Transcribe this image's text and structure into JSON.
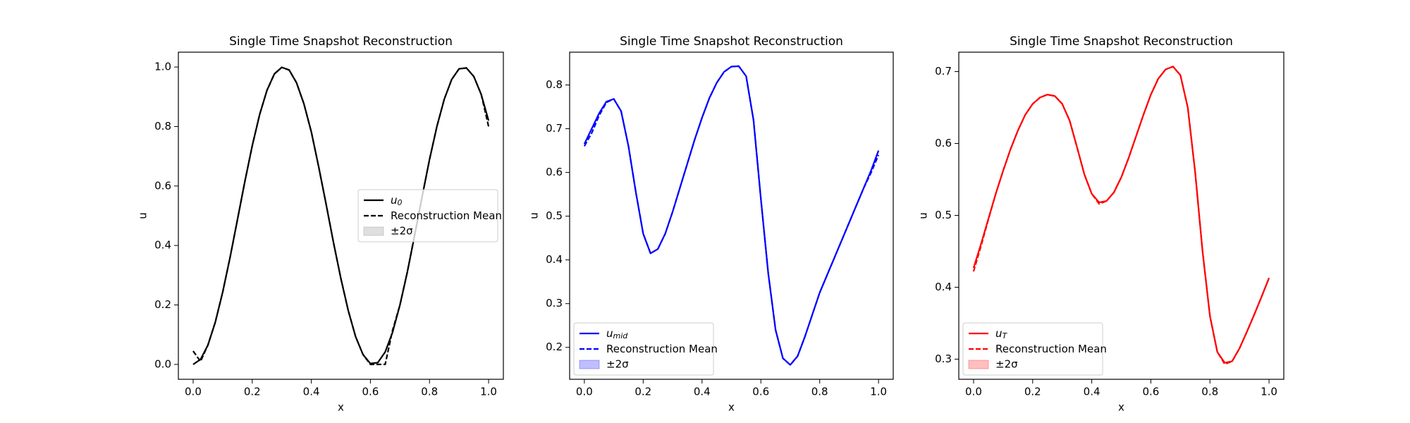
{
  "chart_data": [
    {
      "type": "line",
      "title": "Single Time Snapshot Reconstruction",
      "xlabel": "x",
      "ylabel": "u",
      "x": [
        0,
        0.025,
        0.05,
        0.075,
        0.1,
        0.125,
        0.15,
        0.175,
        0.2,
        0.225,
        0.25,
        0.275,
        0.3,
        0.325,
        0.35,
        0.375,
        0.4,
        0.425,
        0.45,
        0.475,
        0.5,
        0.525,
        0.55,
        0.575,
        0.6,
        0.625,
        0.65,
        0.675,
        0.7,
        0.725,
        0.75,
        0.775,
        0.8,
        0.825,
        0.85,
        0.875,
        0.9,
        0.925,
        0.95,
        0.975,
        1
      ],
      "series": [
        {
          "name": "u",
          "subscript": "0",
          "color": "#000000",
          "style": "solid",
          "values": [
            0,
            0.017,
            0.065,
            0.142,
            0.243,
            0.36,
            0.487,
            0.615,
            0.735,
            0.84,
            0.922,
            0.977,
            0.999,
            0.99,
            0.947,
            0.876,
            0.782,
            0.664,
            0.539,
            0.41,
            0.289,
            0.181,
            0.093,
            0.033,
            0.003,
            0.006,
            0.042,
            0.108,
            0.2,
            0.311,
            0.436,
            0.564,
            0.689,
            0.8,
            0.892,
            0.958,
            0.994,
            0.997,
            0.968,
            0.908,
            0.82
          ]
        },
        {
          "name": "Reconstruction Mean",
          "color": "#000000",
          "style": "dashed",
          "values": [
            0.045,
            0.01,
            0.065,
            0.142,
            0.243,
            0.36,
            0.487,
            0.615,
            0.735,
            0.84,
            0.922,
            0.977,
            0.999,
            0.99,
            0.947,
            0.876,
            0.782,
            0.664,
            0.539,
            0.41,
            0.289,
            0.181,
            0.093,
            0.033,
            0,
            0,
            0,
            0.115,
            0.2,
            0.311,
            0.436,
            0.564,
            0.689,
            0.8,
            0.892,
            0.958,
            0.994,
            0.997,
            0.968,
            0.908,
            0.8
          ]
        }
      ],
      "band": {
        "name": "±2σ",
        "color": "#808080"
      },
      "legend": "center right",
      "xlim": [
        -0.05,
        1.05
      ],
      "xticks": [
        {
          "value": 0,
          "label": "0.0"
        },
        0.2,
        0.4,
        0.6,
        0.8,
        {
          "value": 1,
          "label": "1.0"
        }
      ],
      "ylim": [
        -0.05,
        1.05
      ],
      "yticks": [
        {
          "value": 0,
          "label": "0.0"
        },
        0.2,
        0.4,
        0.6,
        0.8,
        {
          "value": 1,
          "label": "1.0"
        }
      ]
    },
    {
      "type": "line",
      "title": "Single Time Snapshot Reconstruction",
      "xlabel": "x",
      "ylabel": "u",
      "x": [
        0,
        0.025,
        0.05,
        0.075,
        0.1,
        0.125,
        0.15,
        0.175,
        0.2,
        0.225,
        0.25,
        0.275,
        0.3,
        0.325,
        0.35,
        0.375,
        0.4,
        0.425,
        0.45,
        0.475,
        0.5,
        0.525,
        0.55,
        0.575,
        0.6,
        0.625,
        0.65,
        0.675,
        0.7,
        0.725,
        0.75,
        0.775,
        0.8,
        0.825,
        0.85,
        0.875,
        0.9,
        0.925,
        0.95,
        0.975,
        1
      ],
      "series": [
        {
          "name": "u",
          "subscript": "mid",
          "color": "#0000ff",
          "style": "solid",
          "values": [
            0.665,
            0.7,
            0.735,
            0.762,
            0.768,
            0.74,
            0.66,
            0.555,
            0.46,
            0.415,
            0.425,
            0.46,
            0.51,
            0.565,
            0.62,
            0.675,
            0.725,
            0.77,
            0.805,
            0.83,
            0.842,
            0.843,
            0.82,
            0.72,
            0.54,
            0.37,
            0.24,
            0.175,
            0.16,
            0.18,
            0.225,
            0.275,
            0.325,
            0.365,
            0.405,
            0.445,
            0.485,
            0.525,
            0.565,
            0.605,
            0.65
          ]
        },
        {
          "name": "Reconstruction Mean",
          "color": "#0000ff",
          "style": "dashed",
          "values": [
            0.66,
            0.69,
            0.73,
            0.76,
            0.768,
            0.74,
            0.66,
            0.555,
            0.46,
            0.415,
            0.425,
            0.46,
            0.51,
            0.565,
            0.62,
            0.675,
            0.725,
            0.77,
            0.805,
            0.83,
            0.842,
            0.843,
            0.82,
            0.72,
            0.54,
            0.37,
            0.24,
            0.175,
            0.16,
            0.18,
            0.225,
            0.275,
            0.325,
            0.365,
            0.405,
            0.445,
            0.485,
            0.525,
            0.565,
            0.6,
            0.64
          ]
        }
      ],
      "band": {
        "name": "±2σ",
        "color": "#0000ff"
      },
      "legend": "lower left",
      "xlim": [
        -0.05,
        1.05
      ],
      "xticks": [
        {
          "value": 0,
          "label": "0.0"
        },
        0.2,
        0.4,
        0.6,
        0.8,
        {
          "value": 1,
          "label": "1.0"
        }
      ],
      "ylim": [
        0.127,
        0.875
      ],
      "yticks": [
        0.2,
        0.3,
        0.4,
        0.5,
        0.6,
        0.7,
        0.8
      ]
    },
    {
      "type": "line",
      "title": "Single Time Snapshot Reconstruction",
      "xlabel": "x",
      "ylabel": "u",
      "x": [
        0,
        0.025,
        0.05,
        0.075,
        0.1,
        0.125,
        0.15,
        0.175,
        0.2,
        0.225,
        0.25,
        0.275,
        0.3,
        0.325,
        0.35,
        0.375,
        0.4,
        0.425,
        0.45,
        0.475,
        0.5,
        0.525,
        0.55,
        0.575,
        0.6,
        0.625,
        0.65,
        0.675,
        0.7,
        0.725,
        0.75,
        0.775,
        0.8,
        0.825,
        0.85,
        0.875,
        0.9,
        0.925,
        0.95,
        0.975,
        1
      ],
      "series": [
        {
          "name": "u",
          "subscript": "T",
          "color": "#ff0000",
          "style": "solid",
          "values": [
            0.427,
            0.46,
            0.495,
            0.53,
            0.562,
            0.592,
            0.618,
            0.64,
            0.655,
            0.664,
            0.668,
            0.666,
            0.655,
            0.632,
            0.595,
            0.557,
            0.53,
            0.518,
            0.52,
            0.532,
            0.553,
            0.58,
            0.61,
            0.64,
            0.668,
            0.69,
            0.703,
            0.707,
            0.695,
            0.65,
            0.56,
            0.45,
            0.36,
            0.31,
            0.295,
            0.297,
            0.315,
            0.338,
            0.362,
            0.387,
            0.413
          ]
        },
        {
          "name": "Reconstruction Mean",
          "color": "#ff0000",
          "style": "dashed",
          "values": [
            0.422,
            0.457,
            0.494,
            0.53,
            0.562,
            0.592,
            0.618,
            0.64,
            0.655,
            0.664,
            0.668,
            0.666,
            0.655,
            0.632,
            0.595,
            0.557,
            0.53,
            0.516,
            0.52,
            0.532,
            0.553,
            0.58,
            0.61,
            0.64,
            0.668,
            0.69,
            0.703,
            0.707,
            0.695,
            0.65,
            0.56,
            0.45,
            0.36,
            0.31,
            0.293,
            0.297,
            0.315,
            0.338,
            0.362,
            0.387,
            0.413
          ]
        }
      ],
      "band": {
        "name": "±2σ",
        "color": "#ff0000"
      },
      "legend": "lower left",
      "xlim": [
        -0.05,
        1.05
      ],
      "xticks": [
        {
          "value": 0,
          "label": "0.0"
        },
        0.2,
        0.4,
        0.6,
        0.8,
        {
          "value": 1,
          "label": "1.0"
        }
      ],
      "ylim": [
        0.272,
        0.727
      ],
      "yticks": [
        0.3,
        0.4,
        0.5,
        0.6,
        0.7
      ]
    }
  ]
}
